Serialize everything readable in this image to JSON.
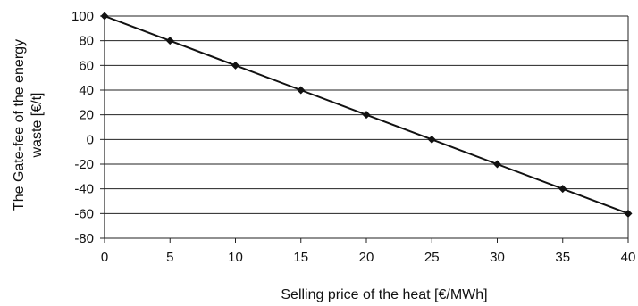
{
  "chart_data": {
    "type": "line",
    "x": [
      0,
      5,
      10,
      15,
      20,
      25,
      30,
      35,
      40
    ],
    "series": [
      {
        "values": [
          100,
          80,
          60,
          40,
          20,
          0,
          -20,
          -40,
          -60
        ],
        "color": "#111111",
        "marker": "diamond"
      }
    ],
    "xlabel": "Selling price of the heat [€/MWh]",
    "ylabel_lines": [
      "The Gate-fee of the energy",
      "waste [€/t]"
    ],
    "xticks": [
      0,
      5,
      10,
      15,
      20,
      25,
      30,
      35,
      40
    ],
    "yticks": [
      100,
      80,
      60,
      40,
      20,
      0,
      -20,
      -40,
      -60,
      -80
    ],
    "xlim": [
      0,
      40
    ],
    "ylim": [
      -80,
      100
    ],
    "grid": "horizontal"
  }
}
